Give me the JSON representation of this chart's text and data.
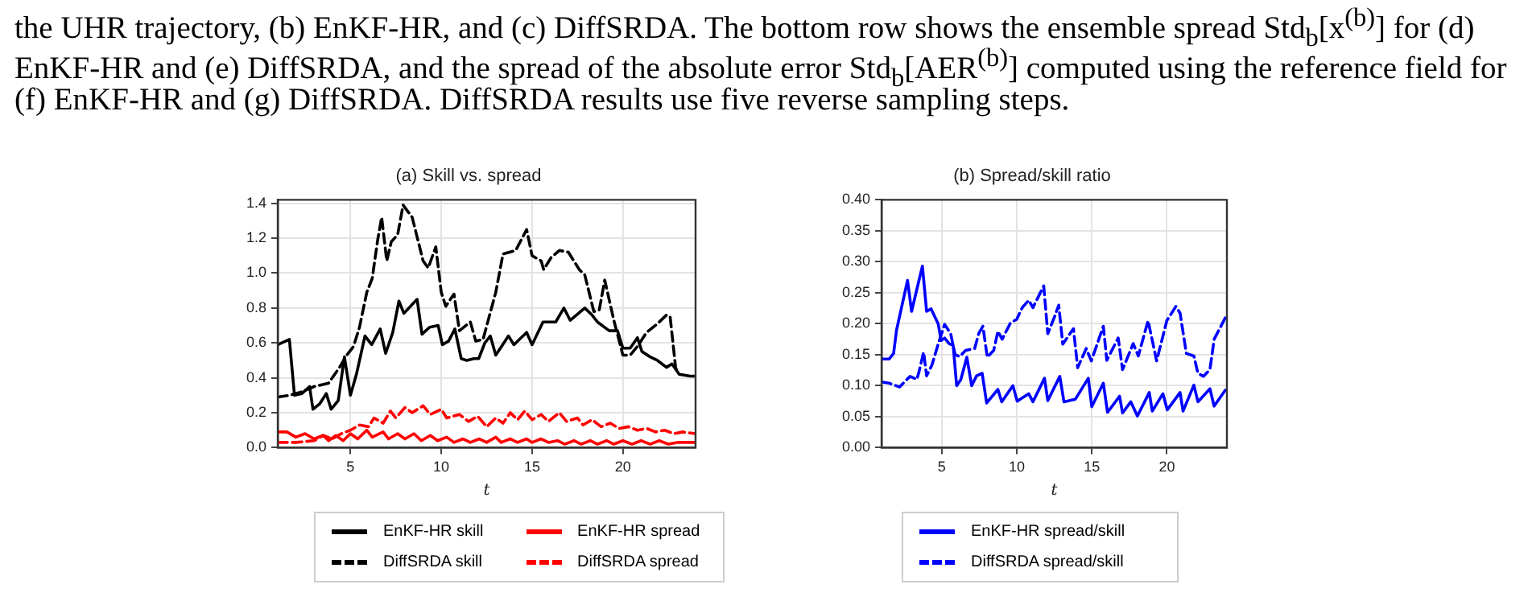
{
  "chart_data": [
    {
      "type": "other",
      "annotations": [
        "the UHR trajectory, (b) EnKF-HR, and (c) DiffSRDA. The bottom row shows the ensemble spread Std$_{b}$[x$^{(b)}$] for (d)",
        "EnKF-HR and (e) DiffSRDA, and the spread of the absolute error Std$_{b}$[AER$^{(b)}$] computed using the reference field for",
        "(f) EnKF-HR and (g) DiffSRDA. DiffSRDA results use five reverse sampling steps."
      ]
    },
    {
      "type": "line",
      "title": "(a) Skill vs. spread",
      "xlabel": "t",
      "xlim": [
        1,
        24
      ],
      "xticks": [
        5,
        10,
        15,
        20
      ],
      "ylim": [
        0,
        1.42
      ],
      "yticks": [
        {
          "value": 0,
          "label": "0.0"
        },
        0.2,
        0.4,
        0.6,
        0.8,
        {
          "value": 1,
          "label": "1.0"
        },
        1.2,
        1.4
      ],
      "grid": true,
      "legend": "bottom",
      "marker": "none",
      "series": [
        {
          "name": "EnKF-HR skill",
          "color": "#000000",
          "line_style": "solid",
          "x": [
            1,
            1.64,
            1.92,
            2.33,
            2.75,
            2.94,
            3.3,
            3.67,
            3.94,
            4.33,
            4.67,
            5,
            5.33,
            5.8,
            6.17,
            6.64,
            6.94,
            7.33,
            7.67,
            7.94,
            8.67,
            8.94,
            9.36,
            9.83,
            10.06,
            10.4,
            10.75,
            11.1,
            11.4,
            11.8,
            12.06,
            12.4,
            12.7,
            13.0,
            13.7,
            14.0,
            14.7,
            15.0,
            15.6,
            16.3,
            16.75,
            17.1,
            17.9,
            18.3,
            18.6,
            19.25,
            19.7,
            20.0,
            20.4,
            20.8,
            21.05,
            21.5,
            21.9,
            22.4,
            22.7,
            23.1,
            23.7,
            24
          ],
          "values": [
            0.59,
            0.62,
            0.3,
            0.31,
            0.35,
            0.22,
            0.25,
            0.31,
            0.22,
            0.27,
            0.52,
            0.3,
            0.42,
            0.64,
            0.59,
            0.68,
            0.54,
            0.66,
            0.84,
            0.77,
            0.85,
            0.65,
            0.69,
            0.7,
            0.59,
            0.61,
            0.68,
            0.51,
            0.5,
            0.51,
            0.51,
            0.6,
            0.64,
            0.53,
            0.64,
            0.59,
            0.66,
            0.59,
            0.72,
            0.72,
            0.8,
            0.73,
            0.8,
            0.76,
            0.72,
            0.67,
            0.67,
            0.57,
            0.57,
            0.63,
            0.55,
            0.52,
            0.5,
            0.46,
            0.48,
            0.42,
            0.41,
            0.41
          ]
        },
        {
          "name": "DiffSRDA skill",
          "color": "#000000",
          "line_style": "dashed",
          "x": [
            1,
            1.64,
            2.33,
            3,
            3.8,
            4.4,
            4.8,
            5.17,
            5.5,
            5.9,
            6.2,
            6.5,
            6.72,
            7.0,
            7.25,
            7.6,
            7.9,
            8.4,
            9.0,
            9.28,
            9.7,
            10.0,
            10.25,
            10.7,
            11.0,
            11.6,
            11.9,
            12.3,
            13.0,
            13.4,
            14.1,
            14.7,
            15.0,
            15.5,
            15.64,
            16.05,
            16.5,
            17.0,
            17.6,
            17.9,
            18.4,
            18.7,
            19.0,
            19.5,
            20.0,
            20.4,
            20.8,
            21.3,
            21.9,
            22.4,
            22.6,
            22.9,
            23.0
          ],
          "values": [
            0.29,
            0.3,
            0.32,
            0.35,
            0.37,
            0.46,
            0.53,
            0.58,
            0.69,
            0.89,
            0.97,
            1.19,
            1.32,
            1.07,
            1.18,
            1.22,
            1.39,
            1.32,
            1.07,
            1.03,
            1.15,
            0.89,
            0.81,
            0.88,
            0.67,
            0.72,
            0.61,
            0.62,
            0.89,
            1.11,
            1.13,
            1.25,
            1.1,
            1.07,
            1.02,
            1.09,
            1.13,
            1.12,
            1.02,
            0.99,
            0.78,
            0.79,
            0.96,
            0.73,
            0.53,
            0.53,
            0.58,
            0.66,
            0.71,
            0.76,
            0.75,
            0.46,
            0.43
          ]
        },
        {
          "name": "EnKF-HR spread",
          "color": "#ff0000",
          "line_style": "solid",
          "x": [
            1,
            1.5,
            2,
            2.5,
            3,
            3.5,
            3.8,
            4.2,
            4.6,
            5,
            5.4,
            5.9,
            6.2,
            6.8,
            7.1,
            7.6,
            8,
            8.5,
            8.9,
            9.4,
            9.8,
            10.3,
            10.7,
            11.2,
            11.6,
            12.1,
            12.5,
            13,
            13.3,
            13.8,
            14.2,
            14.7,
            15,
            15.5,
            15.9,
            16.4,
            16.8,
            17.3,
            17.7,
            18.2,
            18.6,
            19.1,
            19.5,
            20,
            20.5,
            21,
            21.5,
            22,
            22.5,
            23,
            24
          ],
          "values": [
            0.09,
            0.09,
            0.06,
            0.08,
            0.05,
            0.07,
            0.04,
            0.07,
            0.04,
            0.08,
            0.05,
            0.1,
            0.06,
            0.09,
            0.05,
            0.08,
            0.05,
            0.08,
            0.04,
            0.07,
            0.04,
            0.06,
            0.03,
            0.05,
            0.03,
            0.05,
            0.03,
            0.06,
            0.03,
            0.05,
            0.03,
            0.05,
            0.03,
            0.05,
            0.03,
            0.04,
            0.02,
            0.04,
            0.02,
            0.04,
            0.02,
            0.04,
            0.02,
            0.04,
            0.02,
            0.04,
            0.02,
            0.04,
            0.02,
            0.03,
            0.03
          ]
        },
        {
          "name": "DiffSRDA spread",
          "color": "#ff0000",
          "line_style": "dashed",
          "x": [
            1,
            2,
            3,
            3.5,
            4,
            4.5,
            5,
            5.5,
            6,
            6.3,
            6.8,
            7.2,
            7.5,
            8,
            8.4,
            9,
            9.4,
            10,
            10.3,
            11,
            11.5,
            12,
            12.5,
            13,
            13.4,
            13.8,
            14.2,
            14.6,
            15,
            15.5,
            15.9,
            16.5,
            16.9,
            17.5,
            17.8,
            18.3,
            18.8,
            19.3,
            19.8,
            20.3,
            20.8,
            21.3,
            21.8,
            22.3,
            22.8,
            23.3,
            24
          ],
          "values": [
            0.03,
            0.03,
            0.04,
            0.07,
            0.05,
            0.08,
            0.1,
            0.13,
            0.12,
            0.17,
            0.14,
            0.21,
            0.17,
            0.23,
            0.2,
            0.24,
            0.19,
            0.22,
            0.17,
            0.19,
            0.15,
            0.18,
            0.12,
            0.17,
            0.14,
            0.2,
            0.16,
            0.21,
            0.16,
            0.19,
            0.15,
            0.2,
            0.15,
            0.17,
            0.13,
            0.16,
            0.12,
            0.14,
            0.11,
            0.12,
            0.1,
            0.11,
            0.09,
            0.1,
            0.08,
            0.09,
            0.08
          ]
        }
      ]
    },
    {
      "type": "line",
      "title": "(b) Spread/skill ratio",
      "xlabel": "t",
      "xlim": [
        1,
        24
      ],
      "xticks": [
        5,
        10,
        15,
        20
      ],
      "ylim": [
        0,
        0.4
      ],
      "yticks": [
        {
          "value": 0,
          "label": "0.00"
        },
        0.05,
        {
          "value": 0.1,
          "label": "0.10"
        },
        0.15,
        {
          "value": 0.2,
          "label": "0.20"
        },
        0.25,
        {
          "value": 0.3,
          "label": "0.30"
        },
        0.35,
        {
          "value": 0.4,
          "label": "0.40"
        }
      ],
      "grid": true,
      "legend": "bottom",
      "marker": "none",
      "series": [
        {
          "name": "EnKF-HR spread/skill",
          "color": "#0000ff",
          "line_style": "solid",
          "x": [
            1,
            1.5,
            1.8,
            2.0,
            2.73,
            3.0,
            3.72,
            4.0,
            4.3,
            4.77,
            4.97,
            5.2,
            5.5,
            5.77,
            6.0,
            6.28,
            6.68,
            7.0,
            7.33,
            7.7,
            8.0,
            8.75,
            9.0,
            9.75,
            10.03,
            10.8,
            11.08,
            11.85,
            12.07,
            12.87,
            13.15,
            13.9,
            14.77,
            15.0,
            15.77,
            16.05,
            16.85,
            17.05,
            17.6,
            18.04,
            18.83,
            19.03,
            19.74,
            20.03,
            20.88,
            21.08,
            21.8,
            22.07,
            22.87,
            23.15,
            23.9
          ],
          "values": [
            0.143,
            0.143,
            0.152,
            0.19,
            0.27,
            0.22,
            0.293,
            0.22,
            0.224,
            0.2,
            0.173,
            0.177,
            0.168,
            0.165,
            0.1,
            0.11,
            0.146,
            0.1,
            0.116,
            0.12,
            0.072,
            0.094,
            0.074,
            0.1,
            0.075,
            0.087,
            0.074,
            0.112,
            0.076,
            0.115,
            0.074,
            0.078,
            0.112,
            0.066,
            0.104,
            0.057,
            0.083,
            0.056,
            0.074,
            0.051,
            0.089,
            0.059,
            0.087,
            0.061,
            0.089,
            0.059,
            0.101,
            0.074,
            0.095,
            0.067,
            0.093
          ]
        },
        {
          "name": "DiffSRDA spread/skill",
          "color": "#0000ff",
          "line_style": "dashed",
          "x": [
            1,
            1.5,
            2.2,
            2.6,
            2.9,
            3.35,
            3.5,
            3.8,
            4.0,
            4.35,
            4.77,
            5.2,
            5.6,
            5.9,
            6.2,
            6.6,
            7.2,
            7.47,
            7.75,
            8.04,
            8.47,
            8.75,
            9.03,
            9.6,
            10.0,
            10.37,
            10.8,
            11.08,
            11.8,
            12.07,
            12.5,
            12.8,
            13.07,
            13.78,
            14.06,
            14.63,
            14.97,
            15.77,
            16.0,
            16.76,
            17.05,
            17.76,
            18.1,
            18.75,
            19.32,
            20.0,
            20.6,
            20.88,
            21.3,
            21.8,
            22.07,
            22.44,
            22.87,
            23.15,
            23.9
          ],
          "values": [
            0.106,
            0.104,
            0.098,
            0.108,
            0.115,
            0.11,
            0.123,
            0.154,
            0.116,
            0.133,
            0.167,
            0.199,
            0.184,
            0.15,
            0.147,
            0.157,
            0.16,
            0.184,
            0.196,
            0.146,
            0.157,
            0.188,
            0.175,
            0.202,
            0.207,
            0.226,
            0.238,
            0.226,
            0.261,
            0.184,
            0.21,
            0.23,
            0.167,
            0.192,
            0.129,
            0.16,
            0.14,
            0.196,
            0.141,
            0.177,
            0.126,
            0.168,
            0.148,
            0.205,
            0.14,
            0.205,
            0.228,
            0.217,
            0.152,
            0.148,
            0.12,
            0.115,
            0.126,
            0.175,
            0.21
          ]
        }
      ]
    }
  ]
}
